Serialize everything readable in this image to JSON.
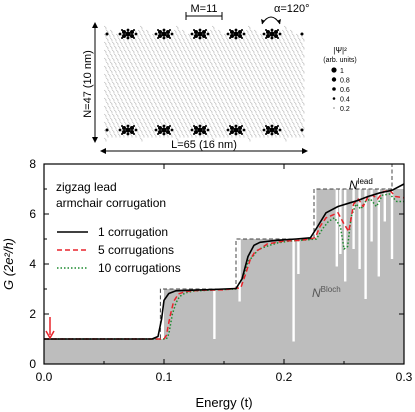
{
  "inset": {
    "m_label": "M=11",
    "alpha_label": "α=120°",
    "n_label": "N=47 (10 nm)",
    "l_label": "L=65 (16 nm)",
    "legend_title": "|Ψ|²",
    "legend_subtitle": "(arb. units)",
    "legend_values": [
      "1",
      "0.8",
      "0.6",
      "0.4",
      "0.2"
    ]
  },
  "chart_data": {
    "type": "line",
    "xlabel": "Energy (t)",
    "ylabel": "G (2e²/h)",
    "xlim": [
      0.0,
      0.3
    ],
    "ylim": [
      0,
      8
    ],
    "x_ticks": [
      "0.0",
      "0.1",
      "0.2",
      "0.3"
    ],
    "y_ticks": [
      "0",
      "2",
      "4",
      "6",
      "8"
    ],
    "annotations": [
      "zigzag lead",
      "armchair corrugation",
      "N^lead",
      "N^Bloch"
    ],
    "legend_placement": "center-left",
    "colors": {
      "bloch_fill": "#bdbdbd",
      "one_corrugation": "#000000",
      "five_corrugations": "#e8242b",
      "ten_corrugations": "#1b8a2e",
      "lead_steps": "#444444",
      "arrow": "#e8242b"
    },
    "series": [
      {
        "name": "1 corrugation",
        "x": [
          0.0,
          0.09,
          0.095,
          0.098,
          0.1,
          0.104,
          0.11,
          0.14,
          0.16,
          0.165,
          0.17,
          0.175,
          0.18,
          0.19,
          0.2,
          0.21,
          0.222,
          0.228,
          0.235,
          0.245,
          0.255,
          0.262,
          0.27,
          0.28,
          0.29,
          0.3
        ],
        "y": [
          1.0,
          1.0,
          1.1,
          1.8,
          2.55,
          2.82,
          2.93,
          2.98,
          3.02,
          3.4,
          4.3,
          4.75,
          4.87,
          4.93,
          4.97,
          5.0,
          5.05,
          5.5,
          6.05,
          6.3,
          6.45,
          6.55,
          6.7,
          6.85,
          6.95,
          7.2
        ]
      },
      {
        "name": "5 corrugations",
        "x": [
          0.0,
          0.1,
          0.102,
          0.105,
          0.108,
          0.112,
          0.118,
          0.13,
          0.15,
          0.164,
          0.168,
          0.172,
          0.176,
          0.18,
          0.186,
          0.192,
          0.2,
          0.215,
          0.226,
          0.23,
          0.235,
          0.24,
          0.245,
          0.25,
          0.254,
          0.258,
          0.262,
          0.266,
          0.27,
          0.274,
          0.278,
          0.283,
          0.288,
          0.293,
          0.3
        ],
        "y": [
          1.0,
          1.0,
          1.15,
          1.9,
          2.5,
          2.8,
          2.9,
          2.95,
          2.97,
          3.05,
          3.6,
          4.2,
          4.5,
          4.6,
          4.8,
          4.85,
          4.92,
          4.95,
          5.05,
          5.5,
          5.85,
          5.95,
          6.05,
          5.6,
          5.3,
          6.4,
          6.6,
          6.3,
          6.7,
          6.75,
          6.6,
          6.9,
          6.95,
          6.7,
          6.65
        ]
      },
      {
        "name": "10 corrugations",
        "x": [
          0.0,
          0.102,
          0.104,
          0.107,
          0.11,
          0.113,
          0.118,
          0.125,
          0.14,
          0.16,
          0.166,
          0.17,
          0.174,
          0.178,
          0.182,
          0.188,
          0.195,
          0.205,
          0.215,
          0.227,
          0.232,
          0.237,
          0.242,
          0.247,
          0.25,
          0.253,
          0.256,
          0.26,
          0.264,
          0.268,
          0.272,
          0.277,
          0.282,
          0.288,
          0.294,
          0.3
        ],
        "y": [
          1.0,
          1.0,
          1.2,
          2.0,
          2.45,
          2.7,
          2.85,
          2.92,
          2.96,
          3.0,
          3.5,
          4.1,
          4.3,
          4.55,
          4.65,
          4.75,
          4.85,
          4.92,
          4.95,
          5.0,
          5.4,
          5.7,
          5.85,
          5.5,
          4.6,
          4.7,
          5.9,
          6.4,
          6.2,
          6.5,
          6.6,
          6.3,
          6.75,
          6.8,
          6.5,
          6.5
        ]
      },
      {
        "name": "N^lead",
        "x": [
          0.0,
          0.097,
          0.097,
          0.16,
          0.16,
          0.225,
          0.225,
          0.29,
          0.29,
          0.3
        ],
        "y": [
          1,
          1,
          3,
          3,
          5,
          5,
          7,
          7,
          9,
          9
        ]
      }
    ],
    "bloch_steps": {
      "x": [
        0.0,
        0.1,
        0.1,
        0.162,
        0.162,
        0.227,
        0.227,
        0.3
      ],
      "y": [
        1,
        1,
        3,
        3,
        5,
        5,
        7,
        7
      ]
    },
    "bloch_dips": [
      {
        "x": 0.142,
        "y": 1.0
      },
      {
        "x": 0.163,
        "y": 2.5
      },
      {
        "x": 0.208,
        "y": 0.9
      },
      {
        "x": 0.212,
        "y": 3.6
      },
      {
        "x": 0.244,
        "y": 3.9
      },
      {
        "x": 0.247,
        "y": 4.4
      },
      {
        "x": 0.251,
        "y": 3.3
      },
      {
        "x": 0.258,
        "y": 4.6
      },
      {
        "x": 0.263,
        "y": 3.8
      },
      {
        "x": 0.268,
        "y": 2.6
      },
      {
        "x": 0.273,
        "y": 4.9
      },
      {
        "x": 0.279,
        "y": 3.5
      },
      {
        "x": 0.284,
        "y": 5.7
      },
      {
        "x": 0.29,
        "y": 4.2
      }
    ],
    "arrow_at": {
      "x": 0.0,
      "y": 1.0
    }
  }
}
